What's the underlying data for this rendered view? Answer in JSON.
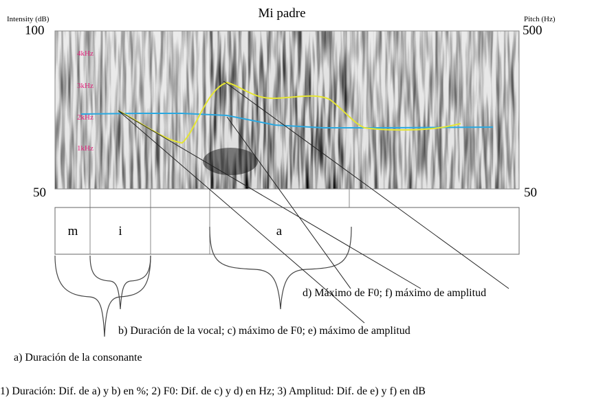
{
  "title": "Mi padre",
  "left_axis": {
    "label": "Intensity (dB)",
    "top": "100",
    "bottom": "50"
  },
  "right_axis": {
    "label": "Pitch (Hz)",
    "top": "500",
    "bottom": "50"
  },
  "frequency_labels": [
    "4kHz",
    "3kHz",
    "2kHz",
    "1kHz"
  ],
  "segments": [
    "m",
    "i",
    "a"
  ],
  "annotations": [
    "d) Máximo  de F0; f) máximo de amplitud",
    "b) Duración de la vocal; c) máximo de F0; e) máximo de amplitud",
    "a) Duración de la consonante"
  ],
  "footer": "1) Duración: Dif. de a) y b) en %; 2) F0: Dif. de c) y d) en Hz; 3) Amplitud: Dif. de e) y f) en dB"
}
